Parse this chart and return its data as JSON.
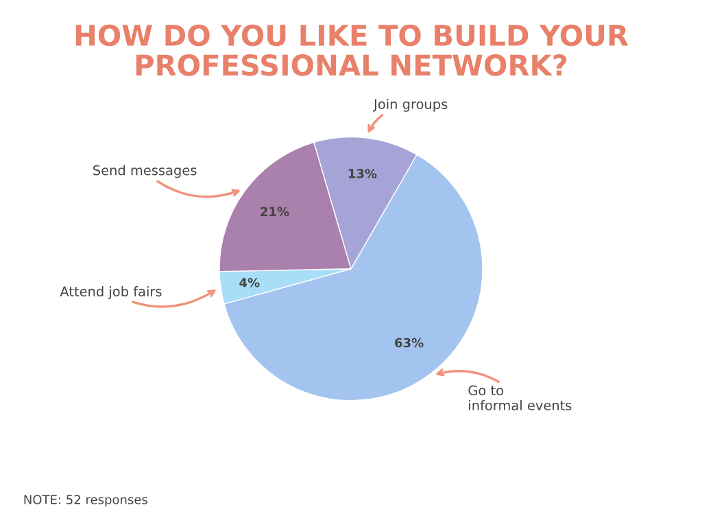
{
  "chart_data": {
    "type": "pie",
    "title": "HOW DO YOU LIKE TO BUILD YOUR\nPROFESSIONAL NETWORK?",
    "categories": [
      "Go to\ninformal events",
      "Attend job fairs",
      "Send messages",
      "Join groups"
    ],
    "values": [
      63,
      4,
      21,
      13
    ],
    "colors": [
      "#a3c4ee",
      "#a8def7",
      "#aa80ad",
      "#a6a3d6"
    ],
    "value_labels": [
      "63%",
      "4%",
      "21%",
      "13%"
    ],
    "annotations": [
      "NOTE: 52 responses"
    ]
  }
}
